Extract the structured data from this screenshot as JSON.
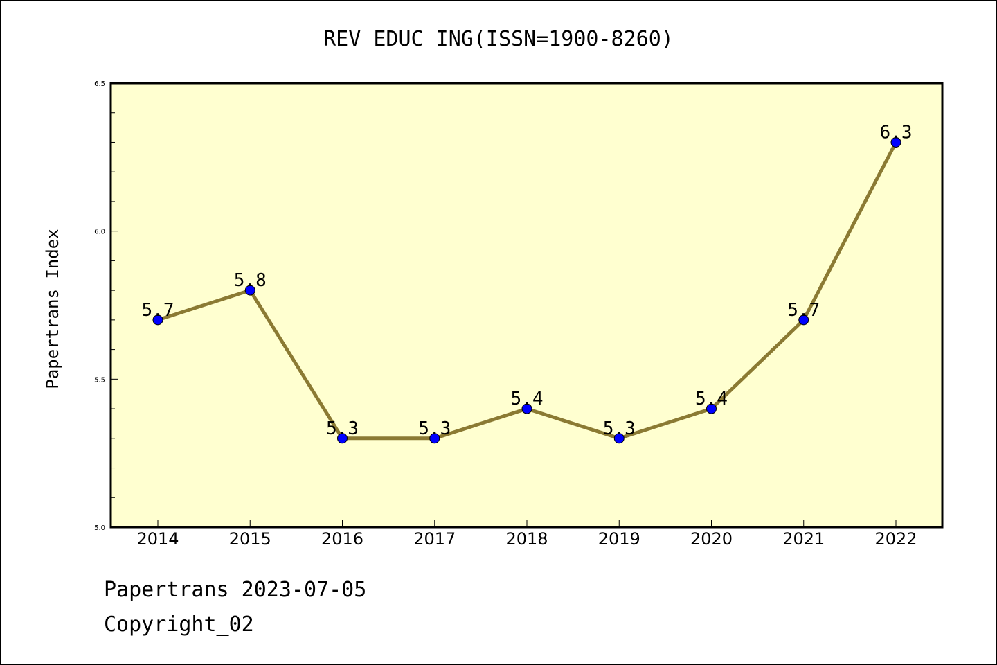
{
  "chart_data": {
    "type": "line",
    "title": "REV EDUC ING(ISSN=1900-8260)",
    "xlabel": "",
    "ylabel": "Papertrans Index",
    "categories": [
      "2014",
      "2015",
      "2016",
      "2017",
      "2018",
      "2019",
      "2020",
      "2021",
      "2022"
    ],
    "series": [
      {
        "values": [
          5.7,
          5.8,
          5.3,
          5.3,
          5.4,
          5.3,
          5.4,
          5.7,
          6.3
        ],
        "labels": [
          "5.7",
          "5.8",
          "5.3",
          "5.3",
          "5.4",
          "5.3",
          "5.4",
          "5.7",
          "6.3"
        ]
      }
    ],
    "ylim": [
      5.0,
      6.5
    ],
    "yticks": [
      "5.0",
      "5.5",
      "6.0",
      "6.5"
    ],
    "grid": false,
    "legend": "none",
    "colors": {
      "plot_background": "#ffffd0",
      "line": "#8b7a33",
      "marker": "#0000ff"
    }
  },
  "footer": {
    "date_line": "Papertrans 2023-07-05",
    "copyright": "Copyright_02"
  }
}
